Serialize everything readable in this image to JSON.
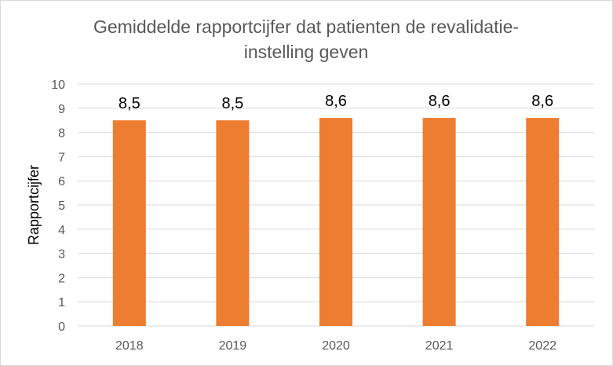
{
  "chart_data": {
    "type": "bar",
    "title_lines": [
      "Gemiddelde rapportcijfer dat patienten de revalidatie-",
      "instelling geven"
    ],
    "xlabel": "",
    "ylabel": "Rapportcijfer",
    "categories": [
      "2018",
      "2019",
      "2020",
      "2021",
      "2022"
    ],
    "values": [
      8.5,
      8.5,
      8.6,
      8.6,
      8.6
    ],
    "data_labels": [
      "8,5",
      "8,5",
      "8,6",
      "8,6",
      "8,6"
    ],
    "ylim": [
      0,
      10
    ],
    "yticks": [
      0,
      1,
      2,
      3,
      4,
      5,
      6,
      7,
      8,
      9,
      10
    ],
    "grid": true,
    "legend": "none",
    "bar_color": "#ED7D31"
  }
}
